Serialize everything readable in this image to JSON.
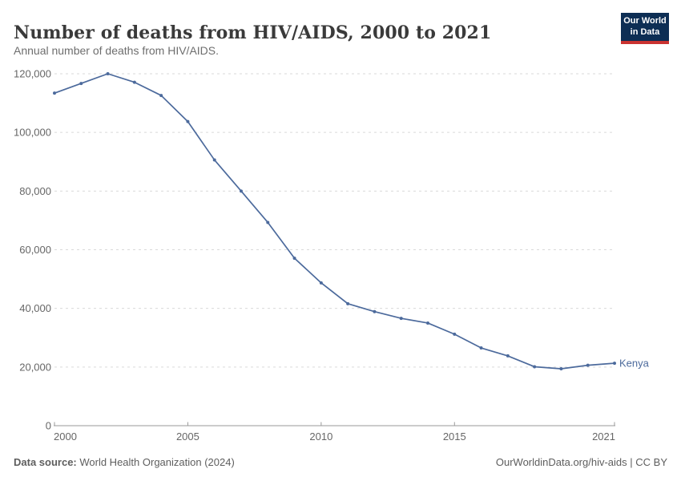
{
  "header": {
    "title": "Number of deaths from HIV/AIDS, 2000 to 2021",
    "subtitle": "Annual number of deaths from HIV/AIDS.",
    "logo": {
      "line1": "Our World",
      "line2": "in Data",
      "bg_color": "#0d2e54",
      "bar_color": "#ca3331"
    }
  },
  "chart_data": {
    "type": "line",
    "title": "Number of deaths from HIV/AIDS, 2000 to 2021",
    "xlabel": "",
    "ylabel": "",
    "xlim": [
      2000,
      2021
    ],
    "ylim": [
      0,
      120000
    ],
    "grid": "horizontal-dashed",
    "legend_position": "end-of-line",
    "xticks": [
      2000,
      2005,
      2010,
      2015,
      2021
    ],
    "xtick_labels": [
      "2000",
      "2005",
      "2010",
      "2015",
      "2021"
    ],
    "yticks": [
      0,
      20000,
      40000,
      60000,
      80000,
      100000,
      120000
    ],
    "ytick_labels": [
      "0",
      "20,000",
      "40,000",
      "60,000",
      "80,000",
      "100,000",
      "120,000"
    ],
    "series": [
      {
        "name": "Kenya",
        "color": "#4c6a9c",
        "x": [
          2000,
          2001,
          2002,
          2003,
          2004,
          2005,
          2006,
          2007,
          2008,
          2009,
          2010,
          2011,
          2012,
          2013,
          2014,
          2015,
          2016,
          2017,
          2018,
          2019,
          2020,
          2021
        ],
        "values": [
          113400,
          116700,
          120000,
          117100,
          112600,
          103700,
          90600,
          80000,
          69300,
          57100,
          48700,
          41600,
          38900,
          36600,
          35000,
          31200,
          26500,
          23800,
          20100,
          19400,
          20600,
          21300
        ]
      }
    ]
  },
  "footer": {
    "source_label": "Data source:",
    "source_value": " World Health Organization (2024)",
    "credit_link": "OurWorldinData.org/hiv-aids",
    "credit_suffix": " | CC BY"
  }
}
